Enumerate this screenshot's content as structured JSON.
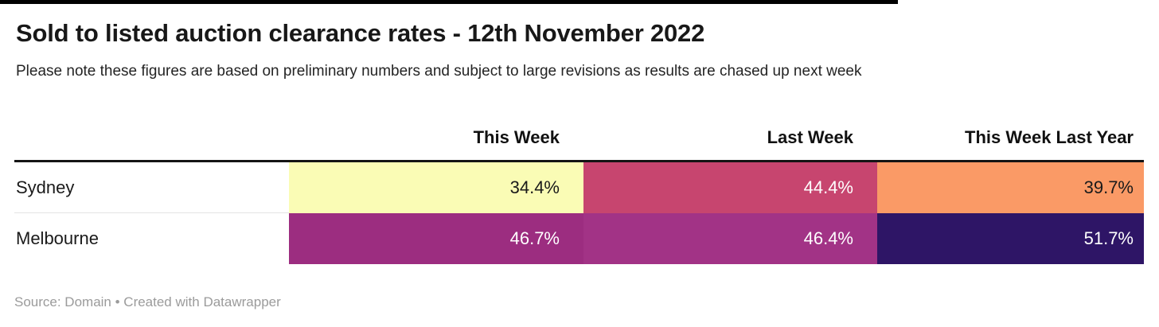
{
  "header": {
    "title": "Sold to listed auction clearance rates - 12th November 2022",
    "subtitle": "Please note these figures are based on preliminary numbers and subject to large revisions as results are chased up next week"
  },
  "footer": {
    "text": "Source: Domain • Created with Datawrapper"
  },
  "colors": {
    "top_bar": "#000000",
    "header_rule": "#141414",
    "row_divider": "#e3e3e3",
    "footer_text": "#9b9b9b"
  },
  "chart_data": {
    "type": "heatmap",
    "title": "Sold to listed auction clearance rates - 12th November 2022",
    "subtitle": "Please note these figures are based on preliminary numbers and subject to large revisions as results are chased up next week",
    "source": "Source: Domain • Created with Datawrapper",
    "columns": [
      "This Week",
      "Last Week",
      "This Week Last Year"
    ],
    "rows": [
      "Sydney",
      "Melbourne"
    ],
    "values": [
      [
        34.4,
        44.4,
        39.7
      ],
      [
        46.7,
        46.4,
        51.7
      ]
    ],
    "display_values": [
      [
        "34.4%",
        "44.4%",
        "39.7%"
      ],
      [
        "46.7%",
        "46.4%",
        "51.7%"
      ]
    ],
    "cell_colors": [
      [
        "#fafcb5",
        "#c7456f",
        "#fa9a66"
      ],
      [
        "#9c2d80",
        "#a23386",
        "#2e1566"
      ]
    ],
    "cell_text_colors": [
      [
        "#1a1a1a",
        "#ffffff",
        "#1a1a1a"
      ],
      [
        "#ffffff",
        "#ffffff",
        "#ffffff"
      ]
    ],
    "value_format": "percent",
    "legend": "none",
    "color_scale_note": "higher value = darker (magma-style scale)"
  }
}
